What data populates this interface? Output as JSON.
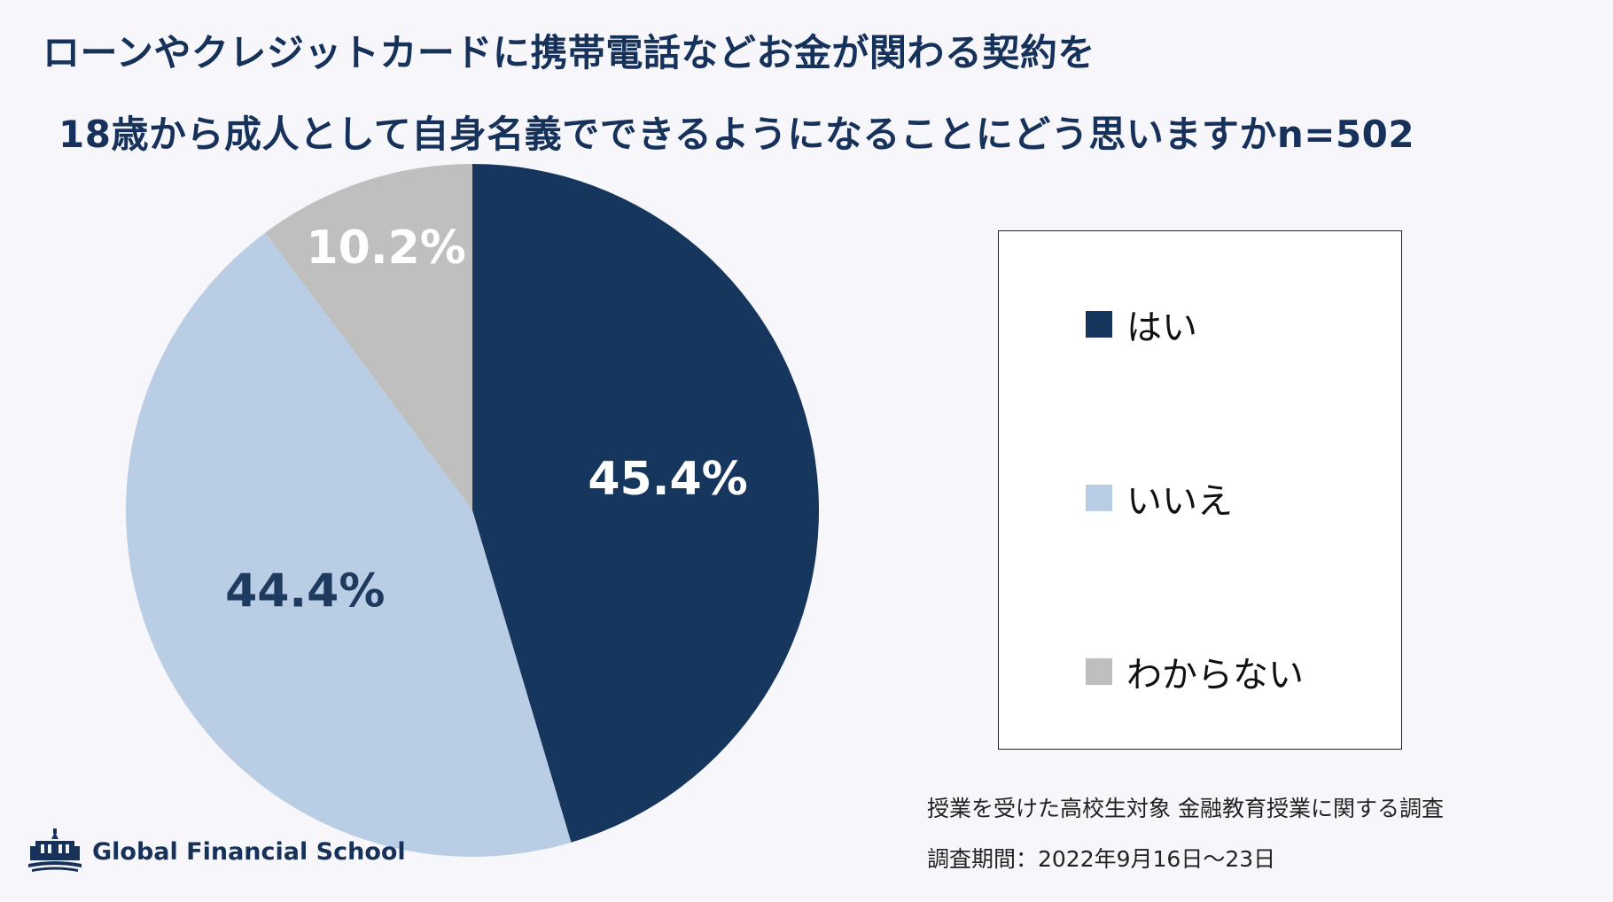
{
  "title_line1": "ローンやクレジットカードに携帯電話などお金が関わる契約を",
  "title_line2": "18歳から成人として自身名義でできるようになることにどう思いますかn=502",
  "chart_data": {
    "type": "pie",
    "slices": [
      {
        "label": "はい",
        "value": 45.4,
        "display": "45.4%",
        "color": "#17365d",
        "label_color": "#ffffff"
      },
      {
        "label": "いいえ",
        "value": 44.4,
        "display": "44.4%",
        "color": "#b9cde5",
        "label_color": "#1f3a5f"
      },
      {
        "label": "わからない",
        "value": 10.2,
        "display": "10.2%",
        "color": "#bfbfbf",
        "label_color": "#ffffff"
      }
    ],
    "start": "12 o'clock",
    "direction": "clockwise",
    "legend_position": "right"
  },
  "legend": {
    "items": [
      {
        "label": "はい",
        "color": "#17365d"
      },
      {
        "label": "いいえ",
        "color": "#b9cde5"
      },
      {
        "label": "わからない",
        "color": "#bfbfbf"
      }
    ]
  },
  "notes": {
    "line1": "授業を受けた高校生対象 金融教育授業に関する調査",
    "line2": "調査期間：2022年9月16日～23日"
  },
  "logo": {
    "text": "Global Financial School",
    "icon": "school-building-icon"
  }
}
